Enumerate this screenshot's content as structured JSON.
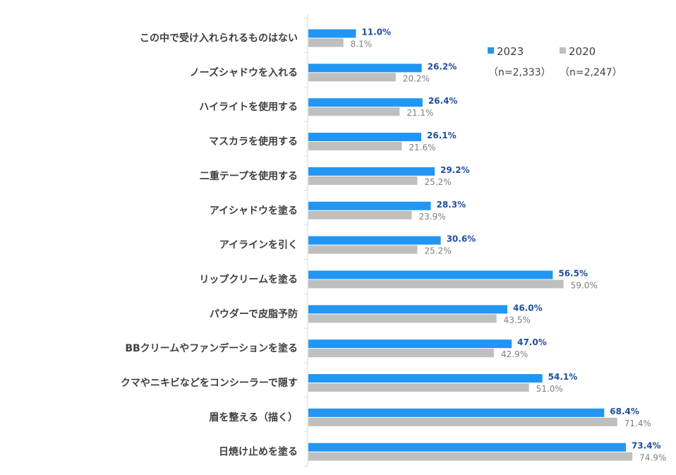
{
  "chart_data": {
    "type": "bar",
    "orientation": "horizontal",
    "categories": [
      "この中で受け入れられるものはない",
      "ノーズシャドウを入れる",
      "ハイライトを使用する",
      "マスカラを使用する",
      "二重テープを使用する",
      "アイシャドウを塗る",
      "アイラインを引く",
      "リップクリームを塗る",
      "パウダーで皮脂予防",
      "BBクリームやファンデーションを塗る",
      "クマやニキビなどをコンシーラーで隠す",
      "眉を整える（描く）",
      "日焼け止めを塗る"
    ],
    "series": [
      {
        "name": "2023",
        "n_label": "（n=2,333）",
        "color": "#2196f3",
        "label_color": "#1f4e9c",
        "values": [
          11.0,
          26.2,
          26.4,
          26.1,
          29.2,
          28.3,
          30.6,
          56.5,
          46.0,
          47.0,
          54.1,
          68.4,
          73.4
        ],
        "labels": [
          "11.0%",
          "26.2%",
          "26.4%",
          "26.1%",
          "29.2%",
          "28.3%",
          "30.6%",
          "56.5%",
          "46.0%",
          "47.0%",
          "54.1%",
          "68.4%",
          "73.4%"
        ]
      },
      {
        "name": "2020",
        "n_label": "（n=2,247）",
        "color": "#bfbfbf",
        "label_color": "#7f7f7f",
        "values": [
          8.1,
          20.2,
          21.1,
          21.6,
          25.2,
          23.9,
          25.2,
          59.0,
          43.5,
          42.9,
          51.0,
          71.4,
          74.9
        ],
        "labels": [
          "8.1%",
          "20.2%",
          "21.1%",
          "21.6%",
          "25.2%",
          "23.9%",
          "25.2%",
          "59.0%",
          "43.5%",
          "42.9%",
          "51.0%",
          "71.4%",
          "74.9%"
        ]
      }
    ],
    "xlim": [
      0,
      85
    ],
    "grid": false,
    "legend_position": "top-right",
    "title": "",
    "xlabel": "",
    "ylabel": ""
  }
}
